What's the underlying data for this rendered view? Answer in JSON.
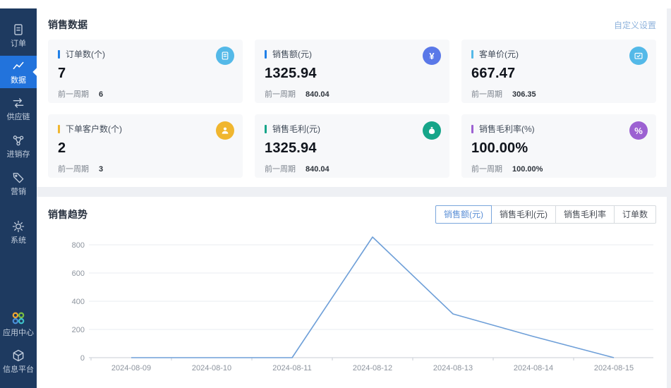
{
  "window": {
    "bg": "#eef0f4",
    "topstrip_bg": "#ffffff"
  },
  "sidebar": {
    "bg": "#1e3a60",
    "active_bg": "#2273dc",
    "items": [
      {
        "label": "订单",
        "icon": "order-doc-icon",
        "active": false
      },
      {
        "label": "数据",
        "icon": "data-chart-icon",
        "active": true
      },
      {
        "label": "供应链",
        "icon": "supply-chain-icon",
        "active": false
      },
      {
        "label": "进销存",
        "icon": "inventory-icon",
        "active": false
      },
      {
        "label": "营销",
        "icon": "marketing-tag-icon",
        "active": false
      },
      {
        "label": "系统",
        "icon": "system-gear-icon",
        "active": false
      },
      {
        "label": "应用中心",
        "icon": "app-center-icon",
        "active": false
      },
      {
        "label": "信息平台",
        "icon": "info-platform-icon",
        "active": false
      }
    ]
  },
  "sales_data": {
    "title": "销售数据",
    "settings_link": "自定义设置",
    "cards": [
      {
        "title": "订单数(个)",
        "value": "7",
        "prev_label": "前一周期",
        "prev_value": "6",
        "accent_color": "#2080e8",
        "icon": "orders-icon",
        "icon_bg": "#54b9e8",
        "icon_glyph": ""
      },
      {
        "title": "销售额(元)",
        "value": "1325.94",
        "prev_label": "前一周期",
        "prev_value": "840.04",
        "accent_color": "#2080e8",
        "icon": "yen-icon",
        "icon_bg": "#5a78e8",
        "icon_glyph": "¥"
      },
      {
        "title": "客单价(元)",
        "value": "667.47",
        "prev_label": "前一周期",
        "prev_value": "306.35",
        "accent_color": "#54b9e8",
        "icon": "price-card-icon",
        "icon_bg": "#54b9e8",
        "icon_glyph": ""
      },
      {
        "title": "下单客户数(个)",
        "value": "2",
        "prev_label": "前一周期",
        "prev_value": "3",
        "accent_color": "#f0b62f",
        "icon": "customer-icon",
        "icon_bg": "#f0b62f",
        "icon_glyph": ""
      },
      {
        "title": "销售毛利(元)",
        "value": "1325.94",
        "prev_label": "前一周期",
        "prev_value": "840.04",
        "accent_color": "#16a589",
        "icon": "profit-bag-icon",
        "icon_bg": "#16a589",
        "icon_glyph": ""
      },
      {
        "title": "销售毛利率(%)",
        "value": "100.00%",
        "prev_label": "前一周期",
        "prev_value": "100.00%",
        "accent_color": "#9c61d2",
        "icon": "percent-icon",
        "icon_bg": "#9c61d2",
        "icon_glyph": "%"
      }
    ]
  },
  "sales_trend": {
    "title": "销售趋势",
    "tabs": [
      {
        "label": "销售额(元)",
        "selected": true
      },
      {
        "label": "销售毛利(元)",
        "selected": false
      },
      {
        "label": "销售毛利率",
        "selected": false
      },
      {
        "label": "订单数",
        "selected": false
      }
    ]
  },
  "chart_data": {
    "type": "line",
    "title": "销售趋势",
    "categories": [
      "2024-08-09",
      "2024-08-10",
      "2024-08-11",
      "2024-08-12",
      "2024-08-13",
      "2024-08-14",
      "2024-08-15"
    ],
    "series": [
      {
        "name": "销售额(元)",
        "values": [
          0,
          0,
          0,
          855,
          310,
          150,
          0
        ]
      }
    ],
    "yticks": [
      0,
      200,
      400,
      600,
      800
    ],
    "ylim": [
      0,
      880
    ],
    "xlabel": "",
    "ylabel": "",
    "grid": true,
    "legend": "none",
    "line_color": "#6e9fd8",
    "axis_color": "#c9ced6",
    "grid_color": "#e9ecf0",
    "tick_label_color": "#8d949e"
  }
}
